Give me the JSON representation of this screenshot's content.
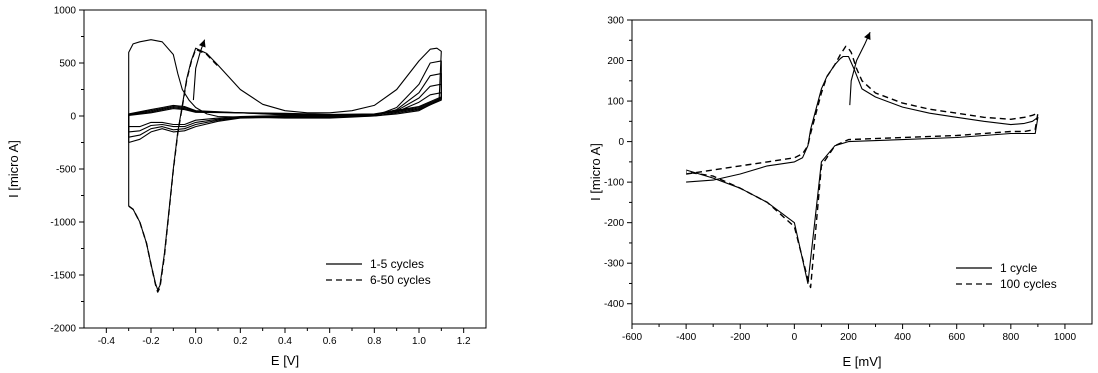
{
  "chart_data": [
    {
      "type": "line",
      "xlabel": "E [V]",
      "ylabel": "I [micro A]",
      "xlim": [
        -0.5,
        1.3
      ],
      "ylim": [
        -2000,
        1000
      ],
      "xticks": [
        "-0.4",
        "-0.2",
        "0.0",
        "0.2",
        "0.4",
        "0.6",
        "0.8",
        "1.0",
        "1.2"
      ],
      "yticks": [
        "1000",
        "500",
        "0",
        "-500",
        "-1000",
        "-1500",
        "-2000"
      ],
      "legend_position": "bottom-right",
      "legend": [
        {
          "label": "1-5 cycles",
          "style": "solid"
        },
        {
          "label": "6-50 cycles",
          "style": "dashed"
        }
      ],
      "series": [
        {
          "style": "solid",
          "x": [
            -0.3,
            -0.28,
            -0.25,
            -0.22,
            -0.2,
            -0.18,
            -0.17,
            -0.16,
            -0.14,
            -0.12,
            -0.1,
            -0.08,
            -0.06,
            -0.04,
            -0.02,
            0.0,
            0.05,
            0.1,
            0.2,
            0.3,
            0.4,
            0.5,
            0.6,
            0.7,
            0.8,
            0.9,
            1.0,
            1.05,
            1.08,
            1.1,
            1.09,
            1.0,
            0.9,
            0.8,
            0.7,
            0.6,
            0.5,
            0.4,
            0.3,
            0.2,
            0.1,
            0.05,
            0.0,
            -0.03,
            -0.06,
            -0.08,
            -0.1,
            -0.15,
            -0.2,
            -0.25,
            -0.28,
            -0.3,
            -0.3,
            -0.3
          ],
          "y": [
            -850,
            -880,
            -1000,
            -1200,
            -1400,
            -1580,
            -1640,
            -1600,
            -1300,
            -900,
            -500,
            -150,
            100,
            350,
            520,
            640,
            590,
            480,
            250,
            110,
            50,
            30,
            30,
            50,
            100,
            250,
            520,
            630,
            640,
            610,
            150,
            50,
            20,
            0,
            -10,
            -20,
            -20,
            -20,
            -15,
            -10,
            -5,
            20,
            80,
            150,
            250,
            400,
            580,
            700,
            720,
            700,
            680,
            600,
            0,
            -850
          ]
        },
        {
          "style": "solid",
          "x": [
            -0.3,
            -0.25,
            -0.2,
            -0.15,
            -0.1,
            -0.05,
            0.0,
            0.1,
            0.2,
            0.4,
            0.6,
            0.8,
            0.9,
            1.0,
            1.05,
            1.1,
            1.1,
            1.0,
            0.8,
            0.6,
            0.4,
            0.2,
            0.0,
            -0.05,
            -0.1,
            -0.15,
            -0.2,
            -0.3,
            -0.3
          ],
          "y": [
            -250,
            -220,
            -150,
            -120,
            -150,
            -140,
            -100,
            -50,
            -20,
            -10,
            -10,
            0,
            80,
            300,
            500,
            520,
            150,
            60,
            0,
            0,
            10,
            30,
            50,
            90,
            100,
            80,
            60,
            20,
            -250
          ]
        },
        {
          "style": "solid",
          "x": [
            -0.3,
            -0.25,
            -0.2,
            -0.15,
            -0.1,
            -0.05,
            0.0,
            0.1,
            0.2,
            0.4,
            0.6,
            0.8,
            0.9,
            1.0,
            1.05,
            1.1,
            1.1,
            1.0,
            0.8,
            0.6,
            0.4,
            0.2,
            0.0,
            -0.05,
            -0.1,
            -0.15,
            -0.2,
            -0.3,
            -0.3
          ],
          "y": [
            -200,
            -180,
            -120,
            -100,
            -130,
            -120,
            -80,
            -40,
            -15,
            -5,
            -5,
            5,
            60,
            220,
            380,
            400,
            160,
            70,
            10,
            5,
            15,
            30,
            45,
            80,
            90,
            70,
            50,
            15,
            -200
          ]
        },
        {
          "style": "solid",
          "x": [
            -0.3,
            -0.25,
            -0.2,
            -0.15,
            -0.1,
            -0.05,
            0.0,
            0.1,
            0.2,
            0.4,
            0.6,
            0.8,
            0.9,
            1.0,
            1.05,
            1.1,
            1.1,
            1.0,
            0.8,
            0.6,
            0.4,
            0.2,
            0.0,
            -0.05,
            -0.1,
            -0.15,
            -0.2,
            -0.3,
            -0.3
          ],
          "y": [
            -150,
            -140,
            -90,
            -80,
            -100,
            -100,
            -60,
            -30,
            -10,
            0,
            0,
            10,
            50,
            170,
            280,
            300,
            170,
            80,
            15,
            10,
            20,
            30,
            40,
            70,
            80,
            60,
            40,
            10,
            -150
          ]
        },
        {
          "style": "solid",
          "x": [
            -0.3,
            -0.25,
            -0.2,
            -0.15,
            -0.1,
            -0.05,
            0.0,
            0.1,
            0.2,
            0.4,
            0.6,
            0.8,
            0.9,
            1.0,
            1.05,
            1.1,
            1.1,
            1.0,
            0.8,
            0.6,
            0.4,
            0.2,
            0.0,
            -0.05,
            -0.1,
            -0.15,
            -0.2,
            -0.3,
            -0.3
          ],
          "y": [
            -100,
            -100,
            -60,
            -60,
            -80,
            -80,
            -40,
            -20,
            -5,
            5,
            5,
            15,
            40,
            130,
            200,
            220,
            180,
            90,
            20,
            15,
            25,
            30,
            35,
            60,
            70,
            50,
            30,
            5,
            -100
          ]
        },
        {
          "style": "dashed",
          "x": [
            -0.3,
            -0.28,
            -0.25,
            -0.22,
            -0.2,
            -0.18,
            -0.17,
            -0.16,
            -0.14,
            -0.12,
            -0.1,
            -0.08,
            -0.06,
            -0.04,
            -0.02,
            0.0,
            0.05,
            0.1
          ],
          "y": [
            -850,
            -880,
            -1000,
            -1200,
            -1400,
            -1590,
            -1660,
            -1620,
            -1320,
            -910,
            -510,
            -160,
            90,
            340,
            510,
            630,
            580,
            470
          ]
        },
        {
          "style": "solid",
          "x": [
            -0.01,
            0.0,
            0.02,
            0.04
          ],
          "y": [
            150,
            450,
            600,
            720
          ]
        }
      ]
    },
    {
      "type": "line",
      "xlabel": "E [mV]",
      "ylabel": "I [micro A]",
      "xlim": [
        -600,
        1100
      ],
      "ylim": [
        -450,
        300
      ],
      "xticks": [
        "-600",
        "-400",
        "-200",
        "0",
        "200",
        "400",
        "600",
        "800",
        "1000"
      ],
      "yticks": [
        "300",
        "200",
        "100",
        "0",
        "-100",
        "-200",
        "-300",
        "-400"
      ],
      "legend_position": "bottom-right",
      "legend": [
        {
          "label": "1 cycle",
          "style": "solid"
        },
        {
          "label": "100 cycles",
          "style": "dashed"
        }
      ],
      "series": [
        {
          "style": "solid",
          "x": [
            -400,
            -300,
            -200,
            -100,
            0,
            30,
            50,
            60,
            80,
            100,
            120,
            150,
            170,
            180,
            200,
            220,
            250,
            300,
            400,
            500,
            600,
            700,
            800,
            850,
            880,
            900,
            890,
            850,
            800,
            700,
            600,
            400,
            200,
            150,
            100,
            50,
            0,
            -100,
            -200,
            -300,
            -400
          ],
          "y": [
            -100,
            -95,
            -80,
            -60,
            -50,
            -40,
            -10,
            30,
            80,
            130,
            160,
            190,
            205,
            210,
            210,
            180,
            130,
            110,
            85,
            70,
            60,
            50,
            42,
            45,
            50,
            60,
            20,
            20,
            20,
            15,
            10,
            5,
            0,
            -10,
            -50,
            -350,
            -200,
            -150,
            -115,
            -90,
            -70
          ]
        },
        {
          "style": "dashed",
          "x": [
            -400,
            -300,
            -200,
            -100,
            0,
            30,
            50,
            60,
            80,
            100,
            120,
            150,
            170,
            190,
            200,
            210,
            230,
            250,
            300,
            400,
            500,
            600,
            700,
            800,
            850,
            880,
            900,
            890,
            850,
            800,
            700,
            600,
            400,
            200,
            150,
            100,
            60,
            50,
            0,
            -100,
            -200,
            -300,
            -400
          ],
          "y": [
            -80,
            -70,
            -60,
            -50,
            -40,
            -30,
            -10,
            20,
            70,
            120,
            160,
            190,
            215,
            235,
            230,
            220,
            180,
            150,
            120,
            95,
            80,
            70,
            60,
            55,
            60,
            65,
            70,
            30,
            25,
            25,
            20,
            15,
            10,
            5,
            -10,
            -60,
            -360,
            -340,
            -210,
            -150,
            -115,
            -85,
            -75
          ]
        },
        {
          "style": "solid",
          "x": [
            205,
            210,
            230,
            260,
            280
          ],
          "y": [
            90,
            150,
            200,
            240,
            270
          ]
        }
      ]
    }
  ]
}
